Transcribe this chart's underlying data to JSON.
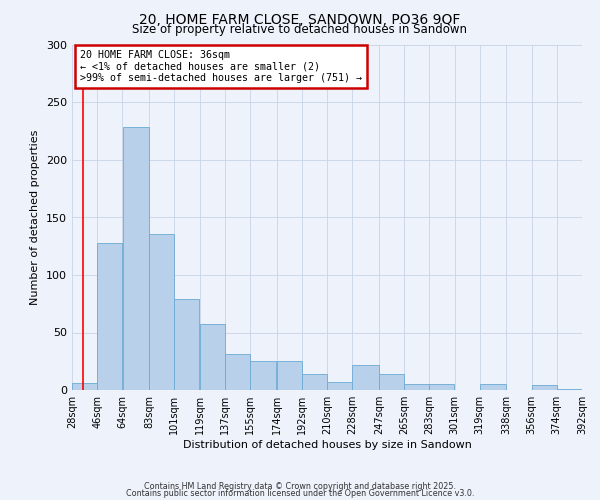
{
  "title": "20, HOME FARM CLOSE, SANDOWN, PO36 9QF",
  "subtitle": "Size of property relative to detached houses in Sandown",
  "xlabel": "Distribution of detached houses by size in Sandown",
  "ylabel": "Number of detached properties",
  "bar_left_edges": [
    28,
    46,
    64,
    83,
    101,
    119,
    137,
    155,
    174,
    192,
    210,
    228,
    247,
    265,
    283,
    301,
    319,
    338,
    356,
    374
  ],
  "bar_widths": [
    18,
    18,
    19,
    18,
    18,
    18,
    18,
    19,
    18,
    18,
    18,
    19,
    18,
    18,
    18,
    18,
    19,
    18,
    18,
    18
  ],
  "bar_heights": [
    6,
    128,
    229,
    136,
    79,
    57,
    31,
    25,
    25,
    14,
    7,
    22,
    14,
    5,
    5,
    0,
    5,
    0,
    4,
    1
  ],
  "bar_color": "#b8d0ea",
  "bar_edge_color": "#6aaad4",
  "x_tick_labels": [
    "28sqm",
    "46sqm",
    "64sqm",
    "83sqm",
    "101sqm",
    "119sqm",
    "137sqm",
    "155sqm",
    "174sqm",
    "192sqm",
    "210sqm",
    "228sqm",
    "247sqm",
    "265sqm",
    "283sqm",
    "301sqm",
    "319sqm",
    "338sqm",
    "356sqm",
    "374sqm",
    "392sqm"
  ],
  "ylim": [
    0,
    300
  ],
  "yticks": [
    0,
    50,
    100,
    150,
    200,
    250,
    300
  ],
  "property_line_x": 36,
  "annotation_title": "20 HOME FARM CLOSE: 36sqm",
  "annotation_line1": "← <1% of detached houses are smaller (2)",
  "annotation_line2": ">99% of semi-detached houses are larger (751) →",
  "annotation_box_color": "#ffffff",
  "annotation_box_edge_color": "#cc0000",
  "background_color": "#eef2fb",
  "grid_color": "#c8d4e8",
  "footer1": "Contains HM Land Registry data © Crown copyright and database right 2025.",
  "footer2": "Contains public sector information licensed under the Open Government Licence v3.0."
}
